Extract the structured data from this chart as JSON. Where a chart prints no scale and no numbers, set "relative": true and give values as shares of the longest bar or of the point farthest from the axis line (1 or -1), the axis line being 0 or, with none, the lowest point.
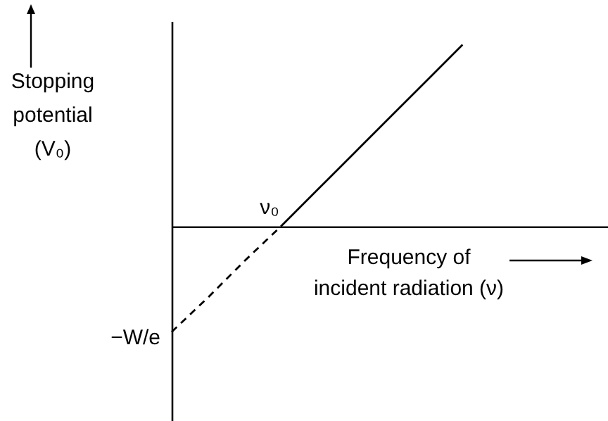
{
  "chart_data": {
    "type": "line",
    "relative": true,
    "ylabel": "Stopping potential (V₀)",
    "xlabel": "Frequency of incident radiation (ν)",
    "marker": "none",
    "categories": [
      null,
      null,
      null,
      null,
      null,
      null,
      null,
      null,
      null,
      null,
      null,
      null,
      null
    ],
    "series": [
      {
        "color": "#000000",
        "line_style": "dashed",
        "values": [
          -0.58,
          -0.39,
          -0.19,
          0,
          null,
          null,
          null,
          null,
          null,
          null,
          null,
          null,
          null
        ]
      },
      {
        "color": "#000000",
        "line_style": "solid",
        "values": [
          null,
          null,
          null,
          0,
          0.2,
          0.4,
          0.6,
          0.8,
          1,
          null,
          null,
          null,
          null
        ]
      }
    ],
    "annotations": [
      {
        "text": "ν₀",
        "y": 0
      },
      "−W/e"
    ]
  }
}
